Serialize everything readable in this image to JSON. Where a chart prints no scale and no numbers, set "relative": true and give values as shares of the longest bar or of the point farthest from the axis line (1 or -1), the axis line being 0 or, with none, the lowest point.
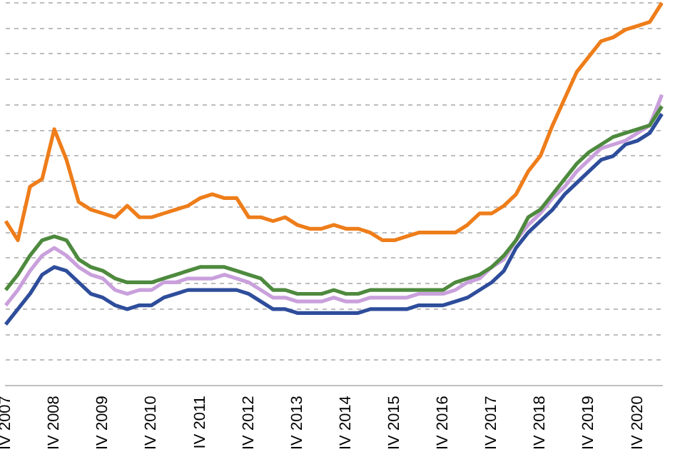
{
  "chart_data": {
    "type": "line",
    "relative": true,
    "grid": "y",
    "legend": false,
    "marker": "none",
    "line_style": "solid",
    "categories": [
      "IV 2007",
      null,
      null,
      null,
      "IV 2008",
      null,
      null,
      null,
      "IV 2009",
      null,
      null,
      null,
      "IV 2010",
      null,
      null,
      null,
      "IV 2011",
      null,
      null,
      null,
      "IV 2012",
      null,
      null,
      null,
      "IV 2013",
      null,
      null,
      null,
      "IV 2014",
      null,
      null,
      null,
      "IV 2015",
      null,
      null,
      null,
      "IV 2016",
      null,
      null,
      null,
      "IV 2017",
      null,
      null,
      null,
      "IV 2018",
      null,
      null,
      null,
      "IV 2019",
      null,
      null,
      null,
      "IV 2020",
      null,
      null
    ],
    "series": [
      {
        "color": "#ee7d1a",
        "values": [
          0.43,
          0.38,
          0.52,
          0.54,
          0.67,
          0.59,
          0.48,
          0.46,
          0.45,
          0.44,
          0.47,
          0.44,
          0.44,
          0.45,
          0.46,
          0.47,
          0.49,
          0.5,
          0.49,
          0.49,
          0.44,
          0.44,
          0.43,
          0.44,
          0.42,
          0.41,
          0.41,
          0.42,
          0.41,
          0.41,
          0.4,
          0.38,
          0.38,
          0.39,
          0.4,
          0.4,
          0.4,
          0.4,
          0.42,
          0.45,
          0.45,
          0.47,
          0.5,
          0.56,
          0.6,
          0.68,
          0.75,
          0.82,
          0.86,
          0.9,
          0.91,
          0.93,
          0.94,
          0.95,
          1
        ]
      },
      {
        "color": "#4e8a3e",
        "values": [
          0.25,
          0.29,
          0.34,
          0.38,
          0.39,
          0.38,
          0.33,
          0.31,
          0.3,
          0.28,
          0.27,
          0.27,
          0.27,
          0.28,
          0.29,
          0.3,
          0.31,
          0.31,
          0.31,
          0.3,
          0.29,
          0.28,
          0.25,
          0.25,
          0.24,
          0.24,
          0.24,
          0.25,
          0.24,
          0.24,
          0.25,
          0.25,
          0.25,
          0.25,
          0.25,
          0.25,
          0.25,
          0.27,
          0.28,
          0.29,
          0.31,
          0.34,
          0.38,
          0.44,
          0.46,
          0.5,
          0.54,
          0.58,
          0.61,
          0.63,
          0.65,
          0.66,
          0.67,
          0.68,
          0.73
        ]
      },
      {
        "color": "#c9a0dc",
        "values": [
          0.21,
          0.25,
          0.3,
          0.34,
          0.36,
          0.34,
          0.31,
          0.29,
          0.28,
          0.25,
          0.24,
          0.25,
          0.25,
          0.27,
          0.27,
          0.28,
          0.28,
          0.28,
          0.29,
          0.28,
          0.27,
          0.25,
          0.23,
          0.23,
          0.22,
          0.22,
          0.22,
          0.23,
          0.22,
          0.22,
          0.23,
          0.23,
          0.23,
          0.23,
          0.24,
          0.24,
          0.24,
          0.25,
          0.27,
          0.28,
          0.31,
          0.33,
          0.38,
          0.42,
          0.45,
          0.49,
          0.52,
          0.56,
          0.59,
          0.62,
          0.63,
          0.64,
          0.66,
          0.68,
          0.76
        ]
      },
      {
        "color": "#2e4d9b",
        "values": [
          0.16,
          0.2,
          0.24,
          0.29,
          0.31,
          0.3,
          0.27,
          0.24,
          0.23,
          0.21,
          0.2,
          0.21,
          0.21,
          0.23,
          0.24,
          0.25,
          0.25,
          0.25,
          0.25,
          0.25,
          0.24,
          0.22,
          0.2,
          0.2,
          0.19,
          0.19,
          0.19,
          0.19,
          0.19,
          0.19,
          0.2,
          0.2,
          0.2,
          0.2,
          0.21,
          0.21,
          0.21,
          0.22,
          0.23,
          0.25,
          0.27,
          0.3,
          0.36,
          0.4,
          0.43,
          0.46,
          0.5,
          0.53,
          0.56,
          0.59,
          0.6,
          0.63,
          0.64,
          0.66,
          0.71
        ]
      }
    ]
  }
}
